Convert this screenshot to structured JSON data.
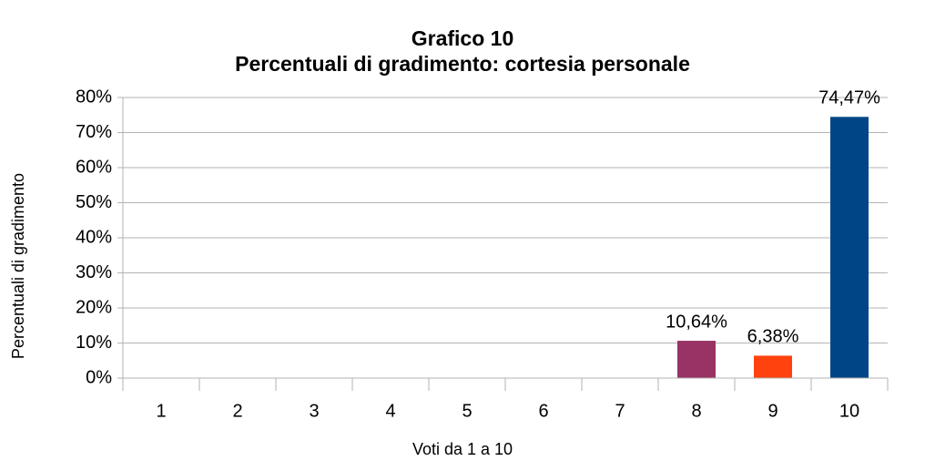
{
  "chart_data": {
    "type": "bar",
    "title": "Grafico 10",
    "subtitle": "Percentuali di gradimento: cortesia personale",
    "x_label": "Voti da 1 a 10",
    "y_label": "Percentuali di gradimento",
    "categories": [
      "1",
      "2",
      "3",
      "4",
      "5",
      "6",
      "7",
      "8",
      "9",
      "10"
    ],
    "values": [
      null,
      null,
      null,
      null,
      null,
      null,
      null,
      10.64,
      6.38,
      74.47
    ],
    "value_labels": [
      null,
      null,
      null,
      null,
      null,
      null,
      null,
      "10,64%",
      "6,38%",
      "74,47%"
    ],
    "colors": [
      null,
      null,
      null,
      null,
      null,
      null,
      null,
      "#993366",
      "#ff420e",
      "#004586"
    ],
    "ylim": [
      0,
      80
    ],
    "yticks": [
      {
        "value": 0,
        "label": "0%"
      },
      {
        "value": 10,
        "label": "10%"
      },
      {
        "value": 20,
        "label": "20%"
      },
      {
        "value": 30,
        "label": "30%"
      },
      {
        "value": 40,
        "label": "40%"
      },
      {
        "value": 50,
        "label": "50%"
      },
      {
        "value": 60,
        "label": "60%"
      },
      {
        "value": 70,
        "label": "70%"
      },
      {
        "value": 80,
        "label": "80%"
      }
    ],
    "grid": true
  }
}
